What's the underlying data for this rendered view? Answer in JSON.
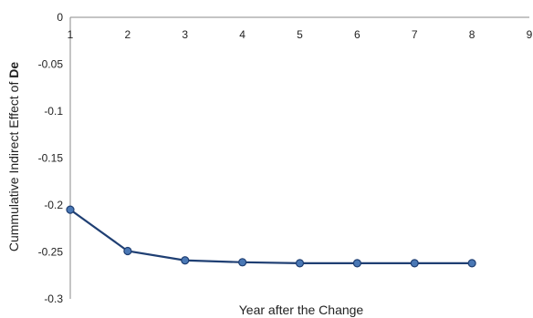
{
  "chart_data": {
    "type": "line",
    "x": [
      1,
      2,
      3,
      4,
      5,
      6,
      7,
      8
    ],
    "series": [
      {
        "values": [
          -0.205,
          -0.249,
          -0.259,
          -0.261,
          -0.262,
          -0.262,
          -0.262,
          -0.262
        ]
      }
    ],
    "xlabel": "Year after the Change",
    "ylabel_prefix": "Cummulative Indirect Effect of ",
    "ylabel_bold": "De",
    "xlim": [
      1,
      9
    ],
    "ylim": [
      -0.3,
      0
    ],
    "xticks": [
      "1",
      "2",
      "3",
      "4",
      "5",
      "6",
      "7",
      "8",
      "9"
    ],
    "yticks": [
      "0",
      "-0.05",
      "-0.1",
      "-0.15",
      "-0.2",
      "-0.25",
      "-0.3"
    ],
    "grid": false,
    "colors": {
      "line": "#1f3f73",
      "marker": "#4a78b5"
    }
  }
}
